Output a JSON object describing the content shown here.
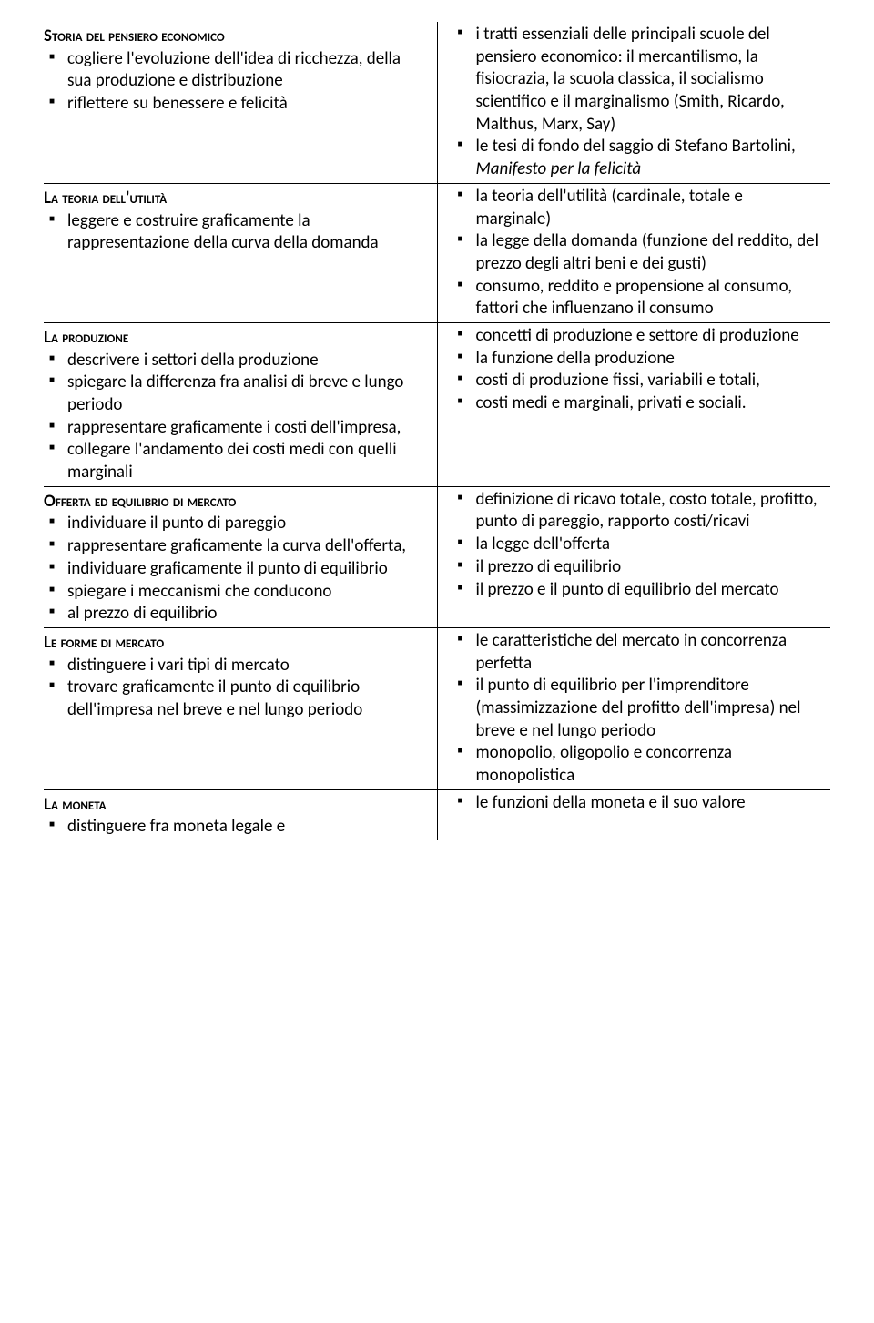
{
  "sections": [
    {
      "heading": "Storia del pensiero economico",
      "left": [
        "cogliere l'evoluzione dell'idea di ricchezza, della sua produzione e distribuzione",
        "riflettere su benessere e felicità"
      ],
      "right": [
        "i tratti essenziali delle principali scuole del pensiero economico: il mercantilismo, la fisiocrazia, la scuola classica, il socialismo scientifico e il marginalismo (Smith, Ricardo, Malthus, Marx, Say)",
        "le tesi di fondo del saggio di Stefano Bartolini, <span class=\"italic\">Manifesto per la felicità</span>"
      ]
    },
    {
      "heading": "La teoria dell'utilità",
      "left": [
        "leggere e costruire graficamente la rappresentazione della curva della domanda"
      ],
      "right": [
        "la teoria dell'utilità (cardinale, totale e marginale)",
        "la legge della domanda (funzione del reddito, del prezzo degli altri beni e dei gusti)",
        "consumo, reddito e propensione al consumo, fattori che influenzano il consumo"
      ]
    },
    {
      "heading": "La produzione",
      "left": [
        "descrivere i settori della produzione",
        "spiegare la differenza fra analisi di breve e lungo periodo",
        "rappresentare graficamente i costi dell'impresa,",
        "collegare l'andamento dei costi medi con quelli marginali"
      ],
      "right": [
        "concetti di produzione e settore di produzione",
        "la funzione della produzione",
        "costi di produzione fissi, variabili e totali,",
        "costi medi e marginali, privati e sociali."
      ]
    },
    {
      "heading": "Offerta ed equilibrio di mercato",
      "left": [
        "individuare il punto di pareggio",
        "rappresentare graficamente la curva dell'offerta,",
        "individuare graficamente il punto di equilibrio",
        "spiegare i meccanismi che conducono",
        "al prezzo di equilibrio"
      ],
      "right": [
        "definizione di ricavo totale, costo totale, profitto, punto di pareggio, rapporto costi/ricavi",
        "la legge dell'offerta",
        "il prezzo di equilibrio",
        "il prezzo e il punto di equilibrio del mercato"
      ]
    },
    {
      "heading": "Le forme di mercato",
      "left": [
        "distinguere i vari tipi di mercato",
        "trovare graficamente il punto di equilibrio dell'impresa nel breve e nel lungo periodo"
      ],
      "right": [
        "le caratteristiche del mercato in concorrenza perfetta",
        "il punto di equilibrio per l'imprenditore (massimizzazione del profitto dell'impresa) nel breve e nel lungo periodo",
        "monopolio, oligopolio e concorrenza monopolistica"
      ]
    },
    {
      "heading": "La moneta",
      "left": [
        "distinguere fra moneta legale e"
      ],
      "right": [
        "le funzioni della moneta e il suo valore"
      ],
      "last": true
    }
  ]
}
